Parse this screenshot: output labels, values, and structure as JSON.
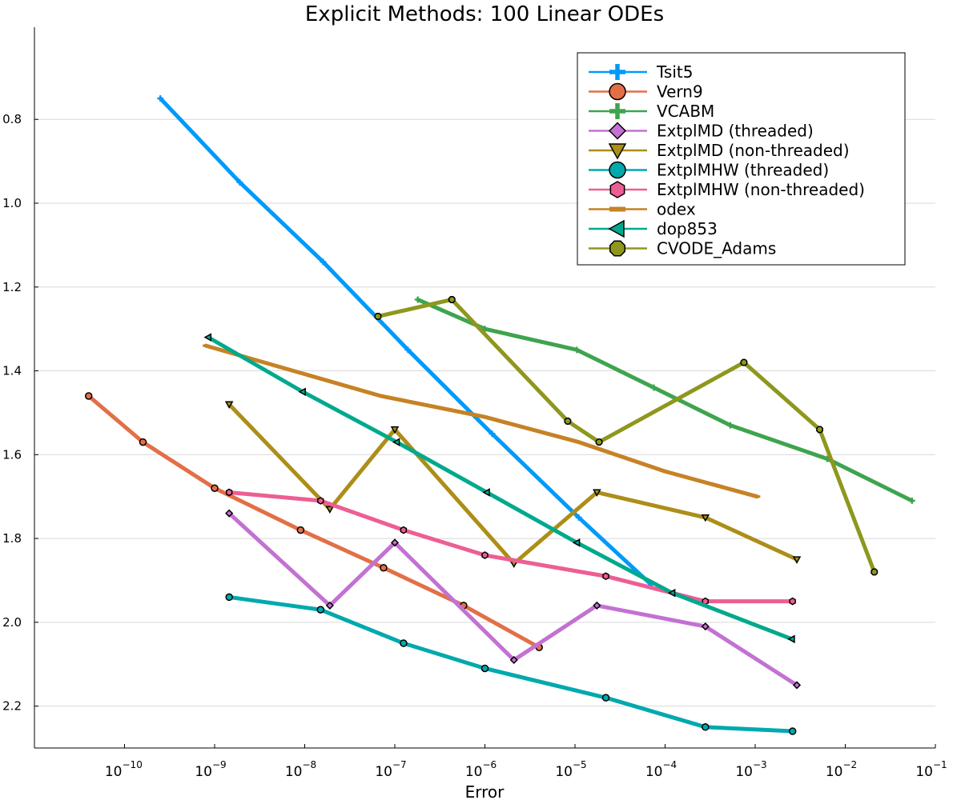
{
  "chart_data": {
    "type": "line",
    "title": "Explicit Methods: 100 Linear ODEs",
    "xlabel": "Error",
    "ylabel": "",
    "xscale": "log",
    "xlim": [
      1e-11,
      0.1
    ],
    "ylim": [
      0.58,
      2.3
    ],
    "grid": "horizontal",
    "legend_position": "top-right",
    "x_ticks": [
      {
        "value": 1e-10,
        "base": "10",
        "exp": "−10"
      },
      {
        "value": 1e-09,
        "base": "10",
        "exp": "−9"
      },
      {
        "value": 1e-08,
        "base": "10",
        "exp": "−8"
      },
      {
        "value": 1e-07,
        "base": "10",
        "exp": "−7"
      },
      {
        "value": 1e-06,
        "base": "10",
        "exp": "−6"
      },
      {
        "value": 1e-05,
        "base": "10",
        "exp": "−5"
      },
      {
        "value": 0.0001,
        "base": "10",
        "exp": "−4"
      },
      {
        "value": 0.001,
        "base": "10",
        "exp": "−3"
      },
      {
        "value": 0.01,
        "base": "10",
        "exp": "−2"
      },
      {
        "value": 0.1,
        "base": "10",
        "exp": "−1"
      }
    ],
    "y_ticks": [
      {
        "value": 0.8,
        "label": "0.8"
      },
      {
        "value": 1.0,
        "label": "1.0"
      },
      {
        "value": 1.2,
        "label": "1.2"
      },
      {
        "value": 1.4,
        "label": "1.4"
      },
      {
        "value": 1.6,
        "label": "1.6"
      },
      {
        "value": 1.8,
        "label": "1.8"
      },
      {
        "value": 2.0,
        "label": "2.0"
      },
      {
        "value": 2.2,
        "label": "2.2"
      }
    ],
    "series": [
      {
        "name": "Tsit5",
        "color": "#009AFA",
        "marker": "cross",
        "x": [
          2.5e-10,
          1.9e-09,
          1.6e-08,
          1.4e-07,
          1.2e-06,
          1.1e-05,
          7e-05
        ],
        "y": [
          0.75,
          0.95,
          1.14,
          1.35,
          1.55,
          1.75,
          1.91
        ]
      },
      {
        "name": "Vern9",
        "color": "#E36F47",
        "marker": "circle",
        "x": [
          4e-11,
          1.6e-10,
          1e-09,
          9e-09,
          7.5e-08,
          5.8e-07,
          4e-06
        ],
        "y": [
          1.46,
          1.57,
          1.68,
          1.78,
          1.87,
          1.96,
          2.06
        ]
      },
      {
        "name": "VCABM",
        "color": "#3EA44E",
        "marker": "cross",
        "x": [
          1.8e-07,
          1e-06,
          1.05e-05,
          7.5e-05,
          0.00053,
          0.0063,
          0.055
        ],
        "y": [
          1.23,
          1.3,
          1.35,
          1.44,
          1.53,
          1.61,
          1.71
        ]
      },
      {
        "name": "ExtplMD (threaded)",
        "color": "#C371D2",
        "marker": "diamond",
        "x": [
          1.45e-09,
          1.9e-08,
          1e-07,
          2.1e-06,
          1.75e-05,
          0.00028,
          0.0029
        ],
        "y": [
          1.74,
          1.96,
          1.81,
          2.09,
          1.96,
          2.01,
          2.15
        ]
      },
      {
        "name": "ExtplMD (non-threaded)",
        "color": "#AC8E18",
        "marker": "dtriangle",
        "x": [
          1.45e-09,
          1.9e-08,
          1e-07,
          2.1e-06,
          1.75e-05,
          0.00028,
          0.0029
        ],
        "y": [
          1.48,
          1.73,
          1.54,
          1.86,
          1.69,
          1.75,
          1.85
        ]
      },
      {
        "name": "ExtplMHW (threaded)",
        "color": "#00A9AD",
        "marker": "circle",
        "x": [
          1.45e-09,
          1.5e-08,
          1.25e-07,
          1e-06,
          2.2e-05,
          0.00028,
          0.0026
        ],
        "y": [
          1.94,
          1.97,
          2.05,
          2.11,
          2.18,
          2.25,
          2.26
        ]
      },
      {
        "name": "ExtplMHW (non-threaded)",
        "color": "#ED5E93",
        "marker": "hexagon",
        "x": [
          1.45e-09,
          1.5e-08,
          1.25e-07,
          1e-06,
          2.2e-05,
          0.00028,
          0.0026
        ],
        "y": [
          1.69,
          1.71,
          1.78,
          1.84,
          1.89,
          1.95,
          1.95
        ]
      },
      {
        "name": "odex",
        "color": "#C68225",
        "marker": "hline",
        "x": [
          8e-10,
          7e-08,
          1e-06,
          1.1e-05,
          0.0001,
          0.00105
        ],
        "y": [
          1.34,
          1.46,
          1.51,
          1.57,
          1.64,
          1.7
        ]
      },
      {
        "name": "dop853",
        "color": "#00A98D",
        "marker": "ltriangle",
        "x": [
          8.5e-10,
          9.5e-09,
          1.05e-07,
          1.05e-06,
          1.05e-05,
          0.00012,
          0.00255
        ],
        "y": [
          1.32,
          1.45,
          1.57,
          1.69,
          1.81,
          1.93,
          2.04
        ]
      },
      {
        "name": "CVODE_Adams",
        "color": "#8E971E",
        "marker": "octagon",
        "x": [
          6.5e-08,
          4.3e-07,
          8.3e-06,
          1.85e-05,
          0.00075,
          0.0052,
          0.021
        ],
        "y": [
          1.27,
          1.23,
          1.52,
          1.57,
          1.38,
          1.54,
          1.88
        ]
      }
    ]
  }
}
